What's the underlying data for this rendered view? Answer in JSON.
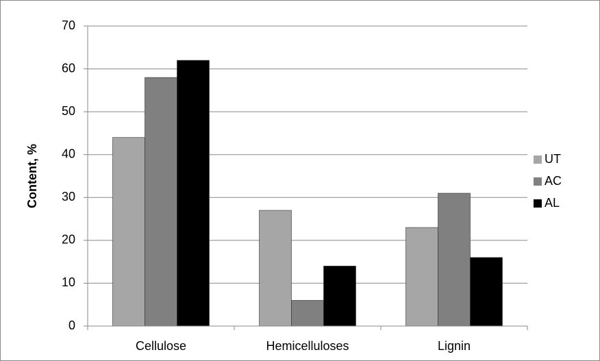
{
  "chart_data": {
    "type": "bar",
    "categories": [
      "Cellulose",
      "Hemicelluloses",
      "Lignin"
    ],
    "series": [
      {
        "name": "UT",
        "color": "#a6a6a6",
        "values": [
          44,
          27,
          23
        ]
      },
      {
        "name": "AC",
        "color": "#808080",
        "values": [
          58,
          6,
          31
        ]
      },
      {
        "name": "AL",
        "color": "#000000",
        "values": [
          62,
          14,
          16
        ]
      }
    ],
    "y_label": "Content, %",
    "ylim": [
      0,
      70
    ],
    "yticks": [
      0,
      10,
      20,
      30,
      40,
      50,
      60,
      70
    ],
    "grid": true,
    "legend": "right"
  }
}
